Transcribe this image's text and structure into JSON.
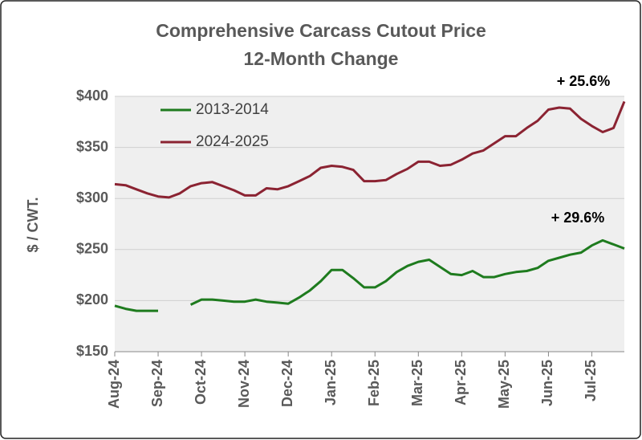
{
  "chart_data": {
    "type": "line",
    "title": "Comprehensive Carcass Cutout Price",
    "subtitle": "12-Month Change",
    "y_label": "$ / CWT.",
    "categories": [
      "Aug-24",
      null,
      null,
      null,
      "Sep-24",
      null,
      null,
      null,
      "Oct-24",
      null,
      null,
      null,
      "Nov-24",
      null,
      null,
      null,
      "Dec-24",
      null,
      null,
      null,
      "Jan-25",
      null,
      null,
      null,
      "Feb-25",
      null,
      null,
      null,
      "Mar-25",
      null,
      null,
      null,
      "Apr-25",
      null,
      null,
      null,
      "May-25",
      null,
      null,
      null,
      "Jun-25",
      null,
      null,
      null,
      "Jul-25",
      null,
      null,
      null
    ],
    "series": [
      {
        "name": "2013-2014",
        "color": "#1e7b1e",
        "values": [
          195,
          192,
          190,
          190,
          190,
          null,
          null,
          196,
          201,
          201,
          200,
          199,
          199,
          201,
          199,
          198,
          197,
          203,
          210,
          219,
          230,
          230,
          222,
          213,
          213,
          219,
          228,
          234,
          238,
          240,
          233,
          226,
          225,
          229,
          223,
          223,
          226,
          228,
          229,
          232,
          239,
          242,
          245,
          247,
          254,
          259,
          255,
          251
        ]
      },
      {
        "name": "2024-2025",
        "color": "#8b2332",
        "values": [
          314,
          313,
          309,
          305,
          302,
          301,
          305,
          312,
          315,
          316,
          312,
          308,
          303,
          303,
          310,
          309,
          312,
          317,
          322,
          330,
          332,
          331,
          328,
          317,
          317,
          318,
          324,
          329,
          336,
          336,
          332,
          333,
          338,
          344,
          347,
          354,
          361,
          361,
          369,
          376,
          387,
          389,
          388,
          378,
          371,
          365,
          369,
          395
        ]
      }
    ],
    "annotations": [
      "+ 25.6%",
      "+ 29.6%"
    ],
    "ylim": [
      150,
      400
    ],
    "yticks": [
      {
        "value": 150,
        "label": "$150"
      },
      {
        "value": 200,
        "label": "$200"
      },
      {
        "value": 250,
        "label": "$250"
      },
      {
        "value": 300,
        "label": "$300"
      },
      {
        "value": 350,
        "label": "$350"
      },
      {
        "value": 400,
        "label": "$400"
      }
    ],
    "grid": true
  }
}
